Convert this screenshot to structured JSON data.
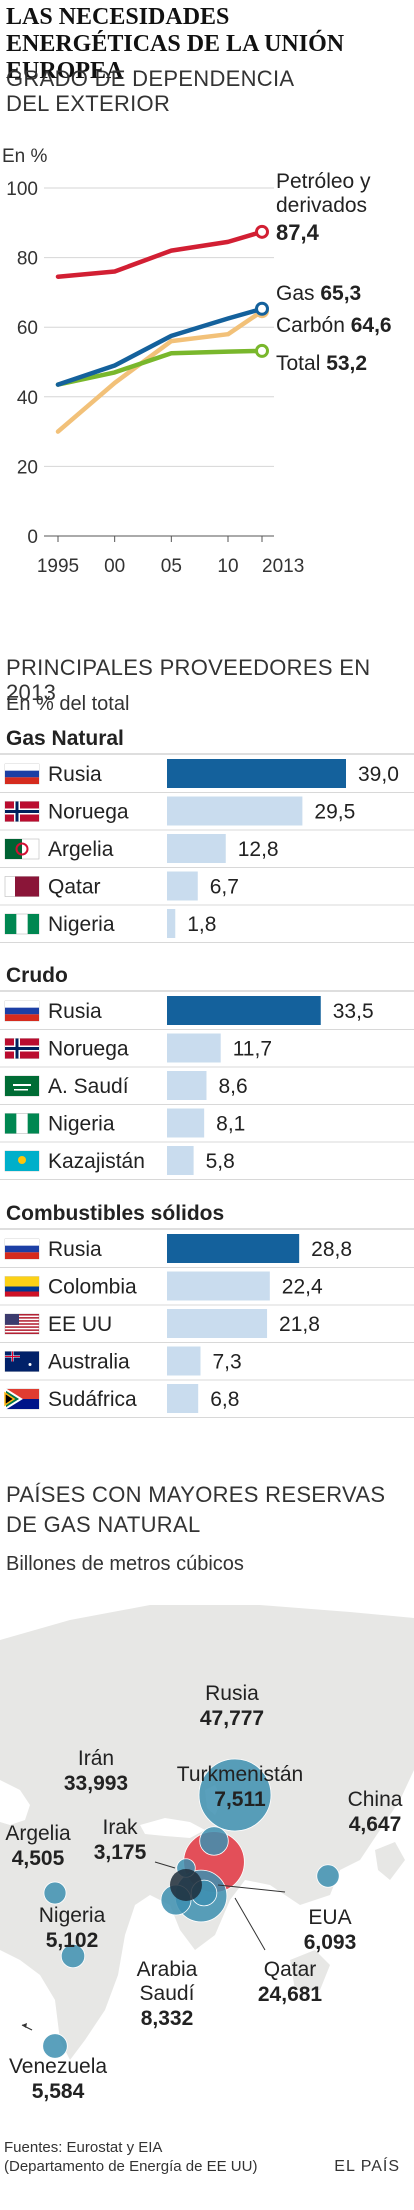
{
  "header": {
    "title": "LAS NECESIDADES ENERGÉTICAS DE LA UNIÓN EUROPEA"
  },
  "colors": {
    "petroleo": "#d21f33",
    "gas": "#14619c",
    "carbon": "#f2c179",
    "total": "#79b72c",
    "bar_first": "#14619c",
    "bar_other": "#c9dcee",
    "map_land": "#e7e7e5",
    "bubble_teal": "#3d8fb0",
    "bubble_red": "#e23a46"
  },
  "chart_data": [
    {
      "type": "line",
      "title": "GRADO DE DEPENDENCIA DEL EXTERIOR",
      "title_lines": [
        "GRADO DE DEPENDENCIA",
        "DEL EXTERIOR"
      ],
      "ylabel": "En %",
      "ylim": [
        0,
        100
      ],
      "yticks": [
        "0",
        "20",
        "40",
        "60",
        "80",
        "100"
      ],
      "xlim": [
        1995,
        2013
      ],
      "xtick_values": [
        1995,
        2000,
        2005,
        2010,
        2013
      ],
      "xticks": [
        "1995",
        "00",
        "05",
        "10",
        "2013"
      ],
      "grid": true,
      "series": [
        {
          "name": "Petróleo y derivados",
          "name_lines": [
            "Petróleo y",
            "derivados"
          ],
          "label_value": "87,4",
          "color": "#d21f33",
          "x": [
            1995,
            2000,
            2005,
            2010,
            2013
          ],
          "values": [
            74.5,
            76,
            82,
            84.5,
            87.4
          ]
        },
        {
          "name": "Gas",
          "label_value": "65,3",
          "color": "#14619c",
          "x": [
            1995,
            2000,
            2005,
            2010,
            2013
          ],
          "values": [
            43.5,
            49,
            57.5,
            62.5,
            65.3
          ]
        },
        {
          "name": "Carbón",
          "label_value": "64,6",
          "color": "#f2c179",
          "x": [
            1995,
            2000,
            2005,
            2010,
            2013
          ],
          "values": [
            30,
            44,
            56,
            58,
            64.6
          ]
        },
        {
          "name": "Total",
          "label_value": "53,2",
          "color": "#79b72c",
          "x": [
            1995,
            2000,
            2005,
            2010,
            2013
          ],
          "values": [
            43.5,
            47,
            52.5,
            53,
            53.2
          ]
        }
      ]
    },
    {
      "type": "bar",
      "title": "PRINCIPALES PROVEEDORES EN 2013",
      "subtitle": "En % del total",
      "xlim": [
        0,
        39
      ],
      "groups": [
        {
          "name": "Gas Natural",
          "categories": [
            "Rusia",
            "Noruega",
            "Argelia",
            "Qatar",
            "Nigeria"
          ],
          "flags": [
            "russia-flag",
            "norway-flag",
            "algeria-flag",
            "qatar-flag",
            "nigeria-flag"
          ],
          "values": [
            39.0,
            29.5,
            12.8,
            6.7,
            1.8
          ],
          "labels": [
            "39,0",
            "29,5",
            "12,8",
            "6,7",
            "1,8"
          ]
        },
        {
          "name": "Crudo",
          "categories": [
            "Rusia",
            "Noruega",
            "A. Saudí",
            "Nigeria",
            "Kazajistán"
          ],
          "flags": [
            "russia-flag",
            "norway-flag",
            "saudi-flag",
            "nigeria-flag",
            "kazakhstan-flag"
          ],
          "values": [
            33.5,
            11.7,
            8.6,
            8.1,
            5.8
          ],
          "labels": [
            "33,5",
            "11,7",
            "8,6",
            "8,1",
            "5,8"
          ]
        },
        {
          "name": "Combustibles sólidos",
          "categories": [
            "Rusia",
            "Colombia",
            "EE UU",
            "Australia",
            "Sudáfrica"
          ],
          "flags": [
            "russia-flag",
            "colombia-flag",
            "usa-flag",
            "australia-flag",
            "southafrica-flag"
          ],
          "values": [
            28.8,
            22.4,
            21.8,
            7.3,
            6.8
          ],
          "labels": [
            "28,8",
            "22,4",
            "21,8",
            "7,3",
            "6,8"
          ]
        }
      ]
    },
    {
      "type": "scatter",
      "title": "PAÍSES CON MAYORES RESERVAS DE GAS NATURAL",
      "title_lines": [
        "PAÍSES CON MAYORES RESERVAS",
        "DE GAS NATURAL"
      ],
      "subtitle": "Billones de metros cúbicos",
      "points": [
        {
          "name": "Rusia",
          "value": 47777,
          "label": "47,777"
        },
        {
          "name": "Irán",
          "value": 33993,
          "label": "33,993"
        },
        {
          "name": "Qatar",
          "value": 24681,
          "label": "24,681"
        },
        {
          "name": "Arabia Saudí",
          "name_lines": [
            "Arabia",
            "Saudí"
          ],
          "value": 8332,
          "label": "8,332"
        },
        {
          "name": "Turkmenistán",
          "value": 7511,
          "label": "7,511"
        },
        {
          "name": "EUA",
          "value": 6093,
          "label": "6,093"
        },
        {
          "name": "Venezuela",
          "value": 5584,
          "label": "5,584"
        },
        {
          "name": "Nigeria",
          "value": 5102,
          "label": "5,102"
        },
        {
          "name": "China",
          "value": 4647,
          "label": "4,647"
        },
        {
          "name": "Argelia",
          "value": 4505,
          "label": "4,505"
        },
        {
          "name": "Irak",
          "value": 3175,
          "label": "3,175"
        }
      ]
    }
  ],
  "footer": {
    "sources_line1": "Fuentes: Eurostat y EIA",
    "sources_line2": "(Departamento de Energía de EE UU)",
    "logo": "EL PAÍS"
  }
}
